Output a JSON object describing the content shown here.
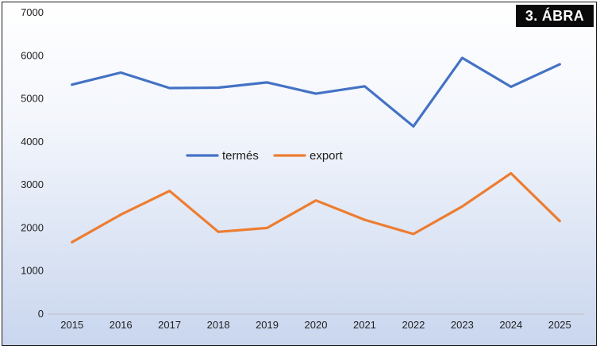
{
  "figure_label": "3. ÁBRA",
  "colors": {
    "termes": "#4472c4",
    "export": "#ed7d31"
  },
  "chart_data": {
    "type": "line",
    "title": "",
    "xlabel": "",
    "ylabel": "",
    "categories": [
      "2015",
      "2016",
      "2017",
      "2018",
      "2019",
      "2020",
      "2021",
      "2022",
      "2023",
      "2024",
      "2025"
    ],
    "yticks": [
      "0",
      "1000",
      "2000",
      "3000",
      "4000",
      "5000",
      "6000",
      "7000"
    ],
    "ylim": [
      0,
      7000
    ],
    "grid": false,
    "legend_position": "center",
    "series": [
      {
        "name": "termés",
        "color": "#4472c4",
        "values": [
          5330,
          5610,
          5250,
          5260,
          5380,
          5120,
          5290,
          4360,
          5950,
          5280,
          5800
        ]
      },
      {
        "name": "export",
        "color": "#ed7d31",
        "values": [
          1670,
          2310,
          2860,
          1910,
          2000,
          2640,
          2190,
          1860,
          2500,
          3270,
          2160
        ]
      }
    ]
  }
}
